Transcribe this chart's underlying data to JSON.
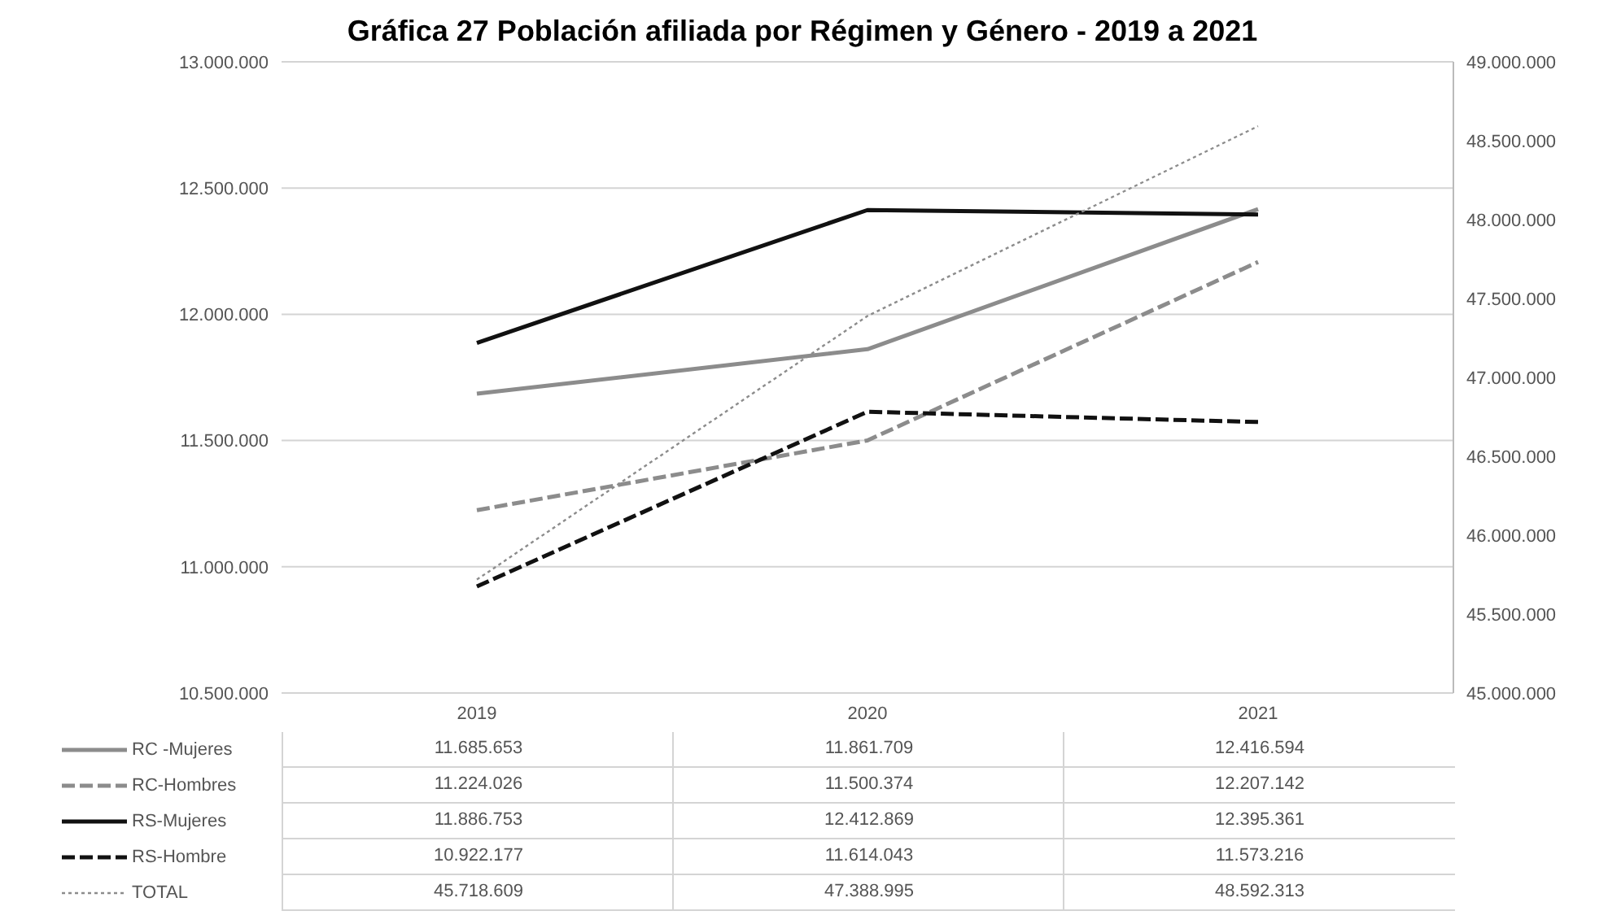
{
  "chart_data": {
    "type": "line",
    "title": "Gráfica 27 Población afiliada por Régimen y Género - 2019 a 2021",
    "categories": [
      "2019",
      "2020",
      "2021"
    ],
    "series": [
      {
        "name": "RC -Mujeres",
        "color": "#8c8c8c",
        "line_style": "solid",
        "values": [
          11685653,
          11861709,
          12416594
        ],
        "value_labels": [
          "11.685.653",
          "11.861.709",
          "12.416.594"
        ]
      },
      {
        "name": "RC-Hombres",
        "color": "#8c8c8c",
        "line_style": "dashed",
        "values": [
          11224026,
          11500374,
          12207142
        ],
        "value_labels": [
          "11.224.026",
          "11.500.374",
          "12.207.142"
        ]
      },
      {
        "name": "RS-Mujeres",
        "color": "#111111",
        "line_style": "solid",
        "values": [
          11886753,
          12412869,
          12395361
        ],
        "value_labels": [
          "11.886.753",
          "12.412.869",
          "12.395.361"
        ]
      },
      {
        "name": "RS-Hombre",
        "color": "#111111",
        "line_style": "dashed",
        "values": [
          10922177,
          11614043,
          11573216
        ],
        "value_labels": [
          "10.922.177",
          "11.614.043",
          "11.573.216"
        ]
      },
      {
        "name": "TOTAL",
        "color": "#8c8c8c",
        "line_style": "dotted",
        "axis": "y2",
        "values": [
          45718609,
          47388995,
          48592313
        ],
        "value_labels": [
          "45.718.609",
          "47.388.995",
          "48.592.313"
        ]
      }
    ],
    "ylim": [
      10500000,
      13000000
    ],
    "yticks": [
      {
        "value": 10500000,
        "label": "10.500.000"
      },
      {
        "value": 11000000,
        "label": "11.000.000"
      },
      {
        "value": 11500000,
        "label": "11.500.000"
      },
      {
        "value": 12000000,
        "label": "12.000.000"
      },
      {
        "value": 12500000,
        "label": "12.500.000"
      },
      {
        "value": 13000000,
        "label": "13.000.000"
      }
    ],
    "y2lim": [
      45000000,
      49000000
    ],
    "y2ticks": [
      {
        "value": 45000000,
        "label": "45.000.000"
      },
      {
        "value": 45500000,
        "label": "45.500.000"
      },
      {
        "value": 46000000,
        "label": "46.000.000"
      },
      {
        "value": 46500000,
        "label": "46.500.000"
      },
      {
        "value": 47000000,
        "label": "47.000.000"
      },
      {
        "value": 47500000,
        "label": "47.500.000"
      },
      {
        "value": 48000000,
        "label": "48.000.000"
      },
      {
        "value": 48500000,
        "label": "48.500.000"
      },
      {
        "value": 49000000,
        "label": "49.000.000"
      }
    ],
    "grid": "y",
    "legend": "bottom",
    "marker": "none"
  }
}
